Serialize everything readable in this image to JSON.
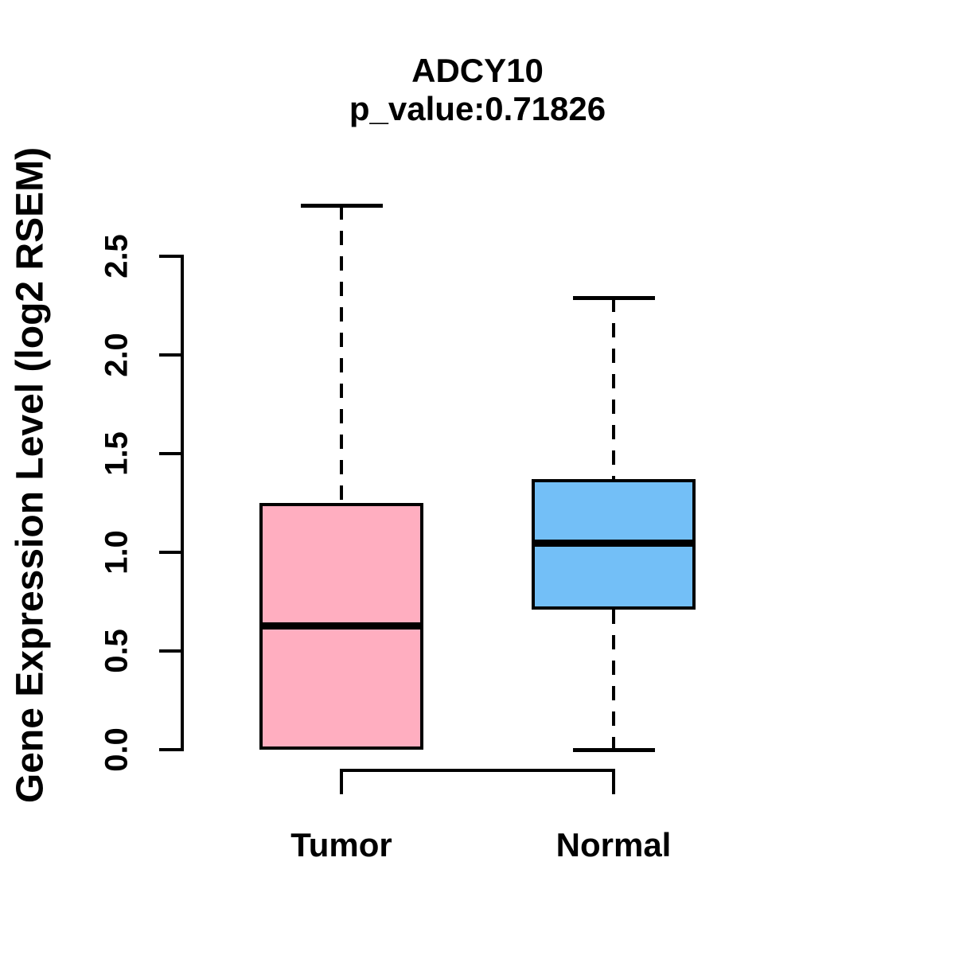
{
  "chart_data": {
    "type": "boxplot",
    "title": "ADCY10",
    "subtitle": "p_value:0.71826",
    "ylabel": "Gene Expression Level (log2 RSEM)",
    "xlabel": "",
    "y_axis": {
      "ticks": [
        0.0,
        0.5,
        1.0,
        1.5,
        2.0,
        2.5
      ],
      "tick_labels": [
        "0.0",
        "0.5",
        "1.0",
        "1.5",
        "2.0",
        "2.5"
      ],
      "range": [
        0.0,
        2.5
      ]
    },
    "groups": [
      {
        "label": "Tumor",
        "fill_color": "#FFAEC0",
        "whisker_low": 0.0,
        "q1": 0.0,
        "median": 0.63,
        "q3": 1.25,
        "whisker_high": 2.76,
        "outliers": []
      },
      {
        "label": "Normal",
        "fill_color": "#73BFF7",
        "whisker_low": 0.0,
        "q1": 0.71,
        "median": 1.05,
        "q3": 1.37,
        "whisker_high": 2.29,
        "outliers": []
      }
    ],
    "layout": {
      "legend": false,
      "grid": false,
      "background": "#FFFFFF",
      "stroke_color": "#000000",
      "whisker_style": "dashed"
    }
  }
}
